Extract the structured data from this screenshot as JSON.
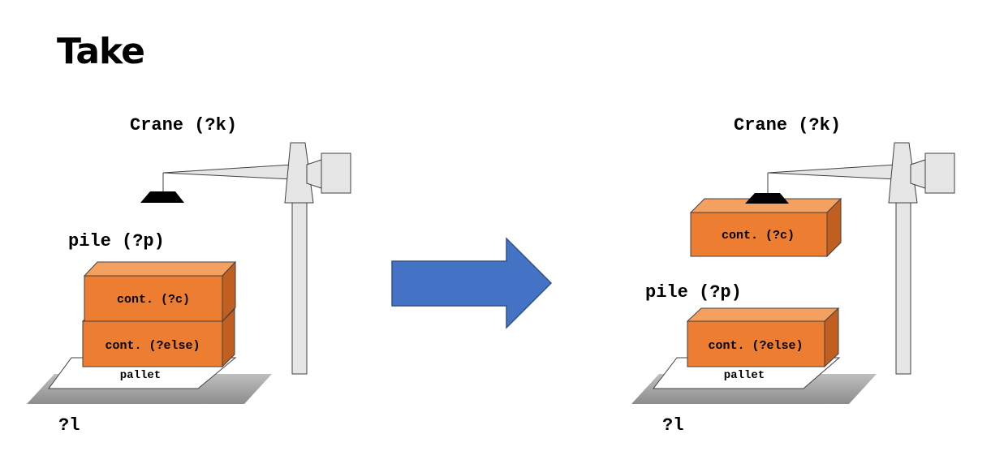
{
  "title": "Take",
  "before": {
    "crane_label": "Crane (?k)",
    "pile_label": "pile (?p)",
    "container_top": "cont. (?c)",
    "container_bottom": "cont. (?else)",
    "pallet_label": "pallet",
    "location_label": "?l"
  },
  "after": {
    "crane_label": "Crane (?k)",
    "pile_label": "pile (?p)",
    "container_held": "cont. (?c)",
    "container_bottom": "cont. (?else)",
    "pallet_label": "pallet",
    "location_label": "?l"
  },
  "colors": {
    "container_front": "#ED7D31",
    "container_top": "#F4A060",
    "container_side": "#C05F1F",
    "arrow": "#4472C4",
    "arrow_border": "#2F528F",
    "ground": "#A6A6A6",
    "crane_fill": "#E7E6E6"
  }
}
